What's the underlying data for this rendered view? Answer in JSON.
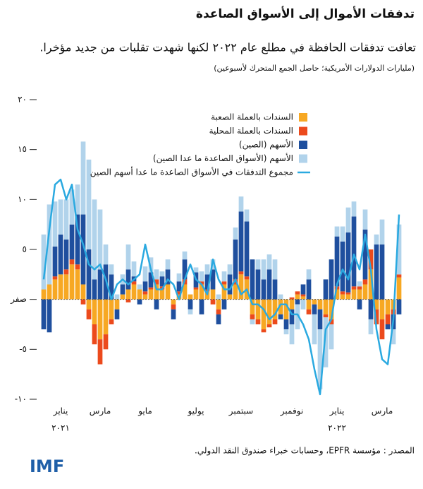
{
  "chart_data": {
    "type": "bar",
    "stacked": true,
    "title": "تدفقات الأموال إلى الأسواق الصاعدة",
    "subtitle": "تعافت تدفقات الحافظة في مطلع عام ٢٠٢٢ لكنها شهدت تقلبات من جديد مؤخرا.",
    "unit_note": "(مليارات الدولارات الأمريكية؛ حاصل الجمع المتحرك لأسبوعين)",
    "source": "المصدر : مؤسسة EPFR، وحسابات خبراء صندوق النقد الدولي.",
    "logo": "IMF",
    "ylim": [
      -10,
      20
    ],
    "yticks": [
      {
        "value": 20,
        "label": "٢٠"
      },
      {
        "value": 15,
        "label": "١٥"
      },
      {
        "value": 10,
        "label": "١٠"
      },
      {
        "value": 5,
        "label": "٥"
      },
      {
        "value": 0,
        "label": "صفر"
      },
      {
        "value": -5,
        "label": "-٥"
      },
      {
        "value": -10,
        "label": "-١٠"
      }
    ],
    "categories": [
      null,
      null,
      null,
      "يناير",
      null,
      null,
      null,
      null,
      null,
      null,
      "مارس",
      null,
      null,
      null,
      null,
      null,
      null,
      null,
      "مايو",
      null,
      null,
      null,
      null,
      null,
      null,
      null,
      null,
      "يوليو",
      null,
      null,
      null,
      null,
      null,
      null,
      null,
      "سبتمبر",
      null,
      null,
      null,
      null,
      null,
      null,
      null,
      null,
      "نوفمبر",
      null,
      null,
      null,
      null,
      null,
      null,
      null,
      "يناير",
      null,
      null,
      null,
      null,
      null,
      null,
      null,
      "مارس",
      null,
      null,
      null
    ],
    "category_years": [
      null,
      null,
      null,
      "٢٠٢١",
      null,
      null,
      null,
      null,
      null,
      null,
      null,
      null,
      null,
      null,
      null,
      null,
      null,
      null,
      null,
      null,
      null,
      null,
      null,
      null,
      null,
      null,
      null,
      null,
      null,
      null,
      null,
      null,
      null,
      null,
      null,
      null,
      null,
      null,
      null,
      null,
      null,
      null,
      null,
      null,
      null,
      null,
      null,
      null,
      null,
      null,
      null,
      null,
      "٢٠٢٢",
      null,
      null,
      null,
      null,
      null,
      null,
      null,
      null,
      null,
      null,
      null
    ],
    "series": [
      {
        "name": "السندات بالعملة الصعبة",
        "color": "#f7a823",
        "values": [
          1,
          1.5,
          2,
          2.5,
          2.5,
          3.5,
          3,
          1.5,
          -1,
          -2.5,
          -4,
          -3.5,
          -2,
          -1,
          0.5,
          1,
          1.5,
          1,
          0.5,
          1,
          1.5,
          1,
          1.5,
          -0.5,
          0.5,
          1.5,
          0.5,
          1,
          1.5,
          0.8,
          1,
          -1,
          1.5,
          0.5,
          1.5,
          2.5,
          2,
          -1.5,
          -2,
          -3,
          -2.5,
          -2,
          -1.5,
          -2,
          -1,
          0.5,
          0.3,
          -1,
          -0.5,
          -1,
          -1.5,
          -2,
          1,
          0.5,
          0.5,
          1,
          1,
          1.5,
          3,
          -1,
          -2,
          -1.5,
          -1,
          2.2
        ]
      },
      {
        "name": "السندات بالعملة المحلية",
        "color": "#ec4a1c",
        "values": [
          0,
          0,
          0.3,
          0,
          0.5,
          0.5,
          0.5,
          -0.5,
          -1,
          -2,
          -2.5,
          -1.5,
          -0.5,
          0,
          0,
          -0.3,
          0.3,
          0,
          0.3,
          0.2,
          0.5,
          0.3,
          0,
          -0.5,
          0.3,
          0.5,
          0,
          0.2,
          0.3,
          0.2,
          -0.5,
          -0.5,
          0.3,
          0,
          0.5,
          0.3,
          0.3,
          -0.5,
          -0.5,
          -0.3,
          -0.3,
          -0.5,
          0,
          0,
          0.2,
          0.3,
          0.2,
          -0.5,
          0,
          0,
          -0.3,
          -0.5,
          0.3,
          0.3,
          0.2,
          0.3,
          0.3,
          0.5,
          2,
          -1.5,
          -2,
          -1,
          -0.5,
          0.3
        ]
      },
      {
        "name": "الأسهم (الصين)",
        "color": "#1f4f9e",
        "values": [
          -3,
          -3.3,
          3,
          4,
          3,
          3.5,
          5,
          7,
          5,
          2,
          3,
          3.5,
          2.5,
          -1,
          1,
          2,
          0.5,
          -0.5,
          1,
          1.5,
          -1,
          1,
          1.5,
          -1,
          1,
          2,
          -1,
          1.5,
          -1.5,
          1.5,
          2,
          -1,
          -1,
          2,
          4,
          6,
          5.5,
          4,
          3,
          2,
          3,
          2,
          -0.5,
          -1,
          -1.5,
          -0.5,
          1,
          2,
          -1,
          -2,
          2,
          4,
          5,
          5,
          6,
          7,
          -1,
          5,
          -2,
          5.5,
          5.5,
          -0.5,
          -1.5,
          -1.5
        ]
      },
      {
        "name": "الأسهم (الأسواق الصاعدة ما عدا الصين)",
        "color": "#b1d3eb",
        "values": [
          5.5,
          8,
          4.5,
          3.5,
          4,
          3.5,
          3,
          7.3,
          9,
          8,
          6,
          2,
          1,
          0.5,
          1,
          2.5,
          1.5,
          0.5,
          1.5,
          1.5,
          1,
          0.5,
          1,
          0,
          0.8,
          0.8,
          -0.5,
          0.5,
          1,
          1,
          1,
          0.5,
          1,
          1,
          1.2,
          1.5,
          1.2,
          -0.5,
          1,
          2,
          1.5,
          2,
          0.5,
          -0.5,
          -2,
          -2.5,
          -1,
          1,
          -3,
          -6,
          -5,
          -2.5,
          1,
          1.5,
          2.5,
          1.5,
          0.5,
          2,
          -1.5,
          1,
          2.5,
          0,
          -1.5,
          5
        ]
      },
      {
        "name": "مجموع التدفقات في الأسواق الصاعدة ما عدا أسهم الصين",
        "color": "#2aa9e0",
        "type": "line",
        "values": [
          2,
          7,
          11.5,
          12,
          10,
          11.5,
          7,
          5.5,
          3.5,
          3,
          3.5,
          2,
          0,
          1.5,
          2,
          1.5,
          2,
          2.5,
          5.5,
          3,
          1,
          1,
          2,
          1.5,
          0,
          2,
          3.5,
          2,
          1.5,
          0.5,
          4,
          2,
          1,
          1,
          2,
          0.5,
          1,
          -0.5,
          -0.5,
          -1,
          -2,
          -1.5,
          -0.5,
          -0.5,
          -1.5,
          -1.5,
          -2.5,
          -4,
          -7,
          -9.5,
          -3,
          -2,
          1.5,
          3,
          2,
          4.5,
          3,
          6.5,
          3,
          -3,
          -6,
          -6.5,
          -2,
          8.5
        ]
      }
    ]
  }
}
